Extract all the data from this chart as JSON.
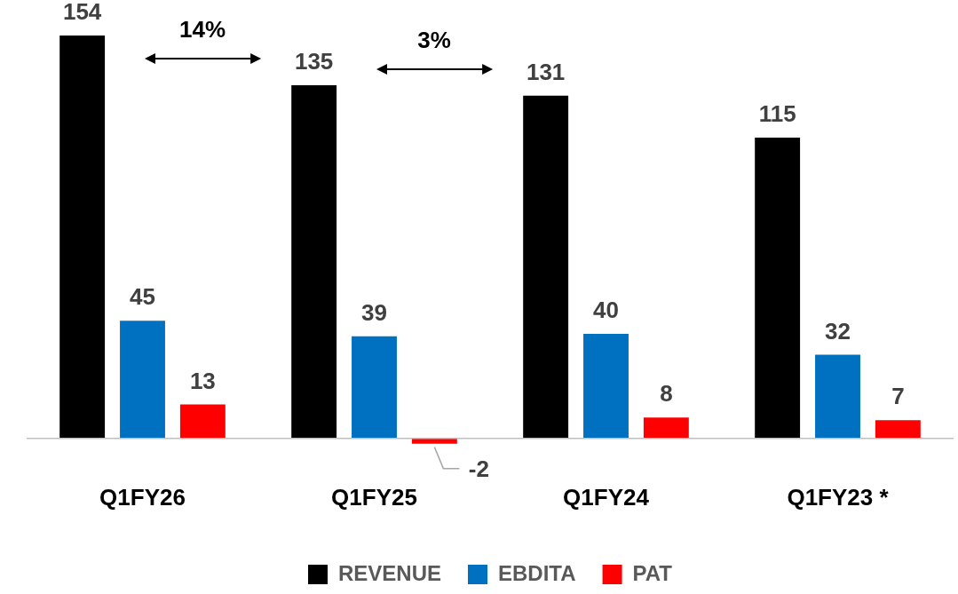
{
  "chart_data": {
    "type": "bar",
    "categories": [
      "Q1FY26",
      "Q1FY25",
      "Q1FY24",
      "Q1FY23 *"
    ],
    "series": [
      {
        "name": "REVENUE",
        "color": "#000000",
        "values": [
          154,
          135,
          131,
          115
        ]
      },
      {
        "name": "EBDITA",
        "color": "#0070c0",
        "values": [
          45,
          39,
          40,
          32
        ]
      },
      {
        "name": "PAT",
        "color": "#ff0000",
        "values": [
          13,
          -2,
          8,
          7
        ]
      }
    ],
    "data_labels": true,
    "legend": "bottom",
    "grid": false,
    "tick_labels": "x",
    "annotations": [
      "14%",
      "3%"
    ]
  }
}
